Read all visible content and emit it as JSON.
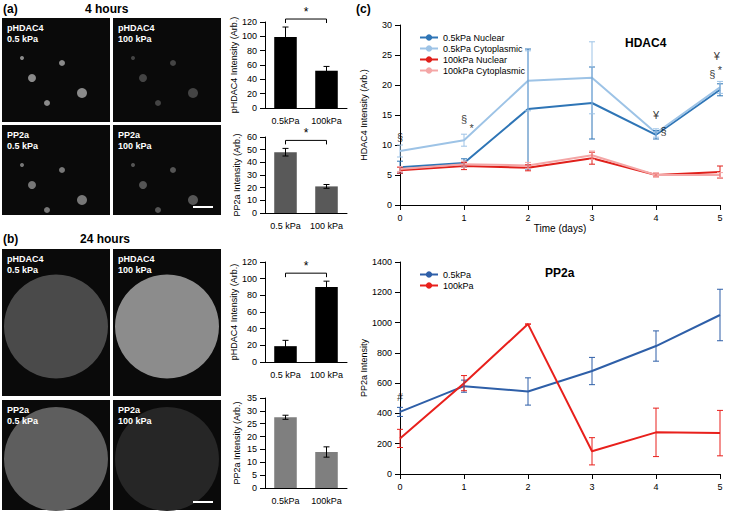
{
  "figure": {
    "panels": [
      {
        "label": "(a)",
        "title": "4 hours",
        "images": [
          [
            "pHDAC4",
            "0.5 kPa"
          ],
          [
            "pHDAC4",
            "100 kPa"
          ],
          [
            "PP2a",
            "0.5 kPa"
          ],
          [
            "PP2a",
            "100 kPa"
          ]
        ]
      },
      {
        "label": "(b)",
        "title": "24 hours",
        "images": [
          [
            "pHDAC4",
            "0.5 kPa"
          ],
          [
            "pHDAC4",
            "100 kPa"
          ],
          [
            "PP2a",
            "0.5 kPa"
          ],
          [
            "PP2a",
            "100 kPa"
          ]
        ]
      },
      {
        "label": "(c)"
      }
    ]
  },
  "chart_data": [
    {
      "type": "bar",
      "y_label": "pHDAC4 Intensity (Arb.)",
      "categories": [
        "0.5kPa",
        "100kPa"
      ],
      "values": [
        99,
        52
      ],
      "errors": [
        14,
        6
      ],
      "color": "#000000",
      "ylim": [
        0,
        120
      ],
      "yticks": [
        0,
        20,
        40,
        60,
        80,
        100,
        120
      ],
      "grid": false,
      "annotations": [
        {
          "text": "*"
        }
      ]
    },
    {
      "type": "bar",
      "y_label": "PP2a Intensity (Arb.)",
      "categories": [
        "0.5 kPa",
        "100 kPa"
      ],
      "values": [
        48,
        21
      ],
      "errors": [
        3,
        1.5
      ],
      "color": "#595959",
      "ylim": [
        0,
        60
      ],
      "yticks": [
        0,
        10,
        20,
        30,
        40,
        50,
        60
      ],
      "grid": false,
      "annotations": [
        {
          "text": "*"
        }
      ]
    },
    {
      "type": "bar",
      "y_label": "pHDAC4 Intensity (Arb.)",
      "categories": [
        "0.5 kPa",
        "100 kPa"
      ],
      "values": [
        19,
        90
      ],
      "errors": [
        7,
        7
      ],
      "color": "#000000",
      "ylim": [
        0,
        120
      ],
      "yticks": [
        0,
        20,
        40,
        60,
        80,
        100,
        120
      ],
      "grid": false,
      "annotations": [
        {
          "text": "*"
        }
      ]
    },
    {
      "type": "bar",
      "y_label": "PP2a Intensity (Arb.)",
      "categories": [
        "0.5kPa",
        "100kPa"
      ],
      "values": [
        27.5,
        14
      ],
      "errors": [
        0.8,
        2
      ],
      "color": "#7f7f7f",
      "ylim": [
        0,
        35
      ],
      "yticks": [
        0,
        5,
        10,
        15,
        20,
        25,
        30,
        35
      ],
      "grid": false
    },
    {
      "type": "line",
      "title": "HDAC4",
      "x_label": "Time (days)",
      "y_label": "HDAC4 Intensity (Arb.)",
      "x": [
        0,
        1,
        2,
        3,
        4,
        5
      ],
      "xlim": [
        0,
        5
      ],
      "xticks": [
        0,
        1,
        2,
        3,
        4,
        5
      ],
      "ylim": [
        0,
        30
      ],
      "yticks": [
        0,
        5,
        10,
        15,
        20,
        25,
        30
      ],
      "legend": "upper left",
      "marker": "none",
      "grid": false,
      "series": [
        {
          "name": "0.5kPa Nuclear",
          "color": "#2e75b6",
          "values": [
            6.3,
            7,
            16,
            17,
            11.7,
            19.2
          ],
          "errors": [
            1,
            0.7,
            10,
            6,
            0.7,
            1
          ]
        },
        {
          "name": "0.5kPa Cytoplasmic",
          "color": "#9dc3e6",
          "values": [
            9,
            10.8,
            20.7,
            21.2,
            12,
            19.6
          ],
          "errors": [
            1,
            1,
            5,
            6,
            0.7,
            1
          ]
        },
        {
          "name": "100kPa Nuclear",
          "color": "#e0201b",
          "values": [
            5.8,
            6.5,
            6.2,
            7.8,
            5,
            5.5
          ],
          "errors": [
            0.5,
            0.6,
            0.5,
            1,
            0.3,
            1
          ]
        },
        {
          "name": "100kPa Cytoplasmic",
          "color": "#f4a6a6",
          "values": [
            6,
            6.8,
            6.6,
            8.3,
            5,
            5
          ],
          "errors": [
            0.4,
            0.5,
            0.5,
            0.7,
            0.3,
            0.4
          ]
        }
      ],
      "annotations": [
        {
          "x": 0,
          "y": 11.3,
          "text": "§"
        },
        {
          "x": 1,
          "y": 14.3,
          "text": "§"
        },
        {
          "x": 1.12,
          "y": 12.8,
          "text": "*"
        },
        {
          "x": 4,
          "y": 15,
          "text": "¥"
        },
        {
          "x": 4.12,
          "y": 12.4,
          "text": "§"
        },
        {
          "x": 4.95,
          "y": 24.8,
          "text": "¥"
        },
        {
          "x": 5,
          "y": 22.5,
          "text": "*"
        },
        {
          "x": 4.88,
          "y": 21.8,
          "text": "§"
        }
      ]
    },
    {
      "type": "line",
      "title": "PP2a",
      "y_label": "PP2a Intensity",
      "x": [
        0,
        1,
        2,
        3,
        4,
        5
      ],
      "xlim": [
        0,
        5
      ],
      "xticks": [
        0,
        1,
        2,
        3,
        4,
        5
      ],
      "ylim": [
        0,
        1400
      ],
      "yticks": [
        0,
        200,
        400,
        600,
        800,
        1000,
        1200,
        1400
      ],
      "legend": "upper left",
      "marker": "none",
      "grid": false,
      "series": [
        {
          "name": "0.5kPa",
          "color": "#2e5fa8",
          "values": [
            410,
            580,
            545,
            680,
            845,
            1050
          ],
          "errors": [
            30,
            40,
            90,
            90,
            100,
            170
          ]
        },
        {
          "name": "100kPa",
          "color": "#e8201c",
          "values": [
            235,
            600,
            990,
            150,
            275,
            270
          ],
          "errors": [
            60,
            50,
            0,
            90,
            160,
            150
          ]
        }
      ],
      "annotations": [
        {
          "x": 0,
          "y": 510,
          "text": "#"
        }
      ]
    }
  ]
}
